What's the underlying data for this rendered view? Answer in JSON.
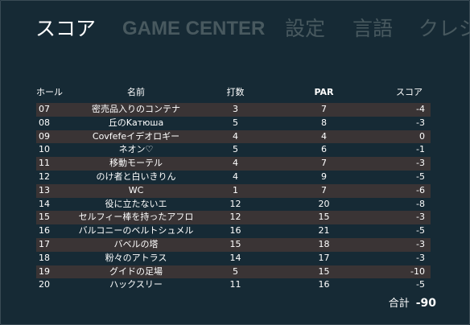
{
  "tabs": [
    {
      "label": "スコア"
    },
    {
      "label": "GAME CENTER"
    },
    {
      "label": "設定"
    },
    {
      "label": "言語"
    },
    {
      "label": "クレジ"
    }
  ],
  "table": {
    "headers": {
      "hole": "ホール",
      "name": "名前",
      "strokes": "打数",
      "par": "PAR",
      "score": "スコア"
    },
    "rows": [
      {
        "hole": "07",
        "name": "密売品入りのコンテナ",
        "strokes": "3",
        "par": "7",
        "score": "-4"
      },
      {
        "hole": "08",
        "name": "丘のKатюша",
        "strokes": "5",
        "par": "8",
        "score": "-3"
      },
      {
        "hole": "09",
        "name": "Covfefeイデオロギー",
        "strokes": "4",
        "par": "4",
        "score": "0"
      },
      {
        "hole": "10",
        "name": "ネオン♡",
        "strokes": "5",
        "par": "6",
        "score": "-1"
      },
      {
        "hole": "11",
        "name": "移動モーテル",
        "strokes": "4",
        "par": "7",
        "score": "-3"
      },
      {
        "hole": "12",
        "name": "のけ者と白いきりん",
        "strokes": "4",
        "par": "9",
        "score": "-5"
      },
      {
        "hole": "13",
        "name": "WC",
        "strokes": "1",
        "par": "7",
        "score": "-6"
      },
      {
        "hole": "14",
        "name": "役に立たないエ",
        "strokes": "12",
        "par": "20",
        "score": "-8"
      },
      {
        "hole": "15",
        "name": "セルフィー棒を持ったアフロ",
        "strokes": "12",
        "par": "15",
        "score": "-3"
      },
      {
        "hole": "16",
        "name": "バルコニーのベルトシュメル",
        "strokes": "16",
        "par": "21",
        "score": "-5"
      },
      {
        "hole": "17",
        "name": "バベルの塔",
        "strokes": "15",
        "par": "18",
        "score": "-3"
      },
      {
        "hole": "18",
        "name": "粉々のアトラス",
        "strokes": "14",
        "par": "17",
        "score": "-3"
      },
      {
        "hole": "19",
        "name": "グイドの足場",
        "strokes": "5",
        "par": "15",
        "score": "-10"
      },
      {
        "hole": "20",
        "name": "ハックスリー",
        "strokes": "11",
        "par": "16",
        "score": "-5"
      }
    ]
  },
  "total": {
    "label": "合計",
    "value": "-90"
  },
  "colors": {
    "background": "#162a35",
    "row_stripe": "#3a3435",
    "inactive_tab": "#48595f"
  }
}
